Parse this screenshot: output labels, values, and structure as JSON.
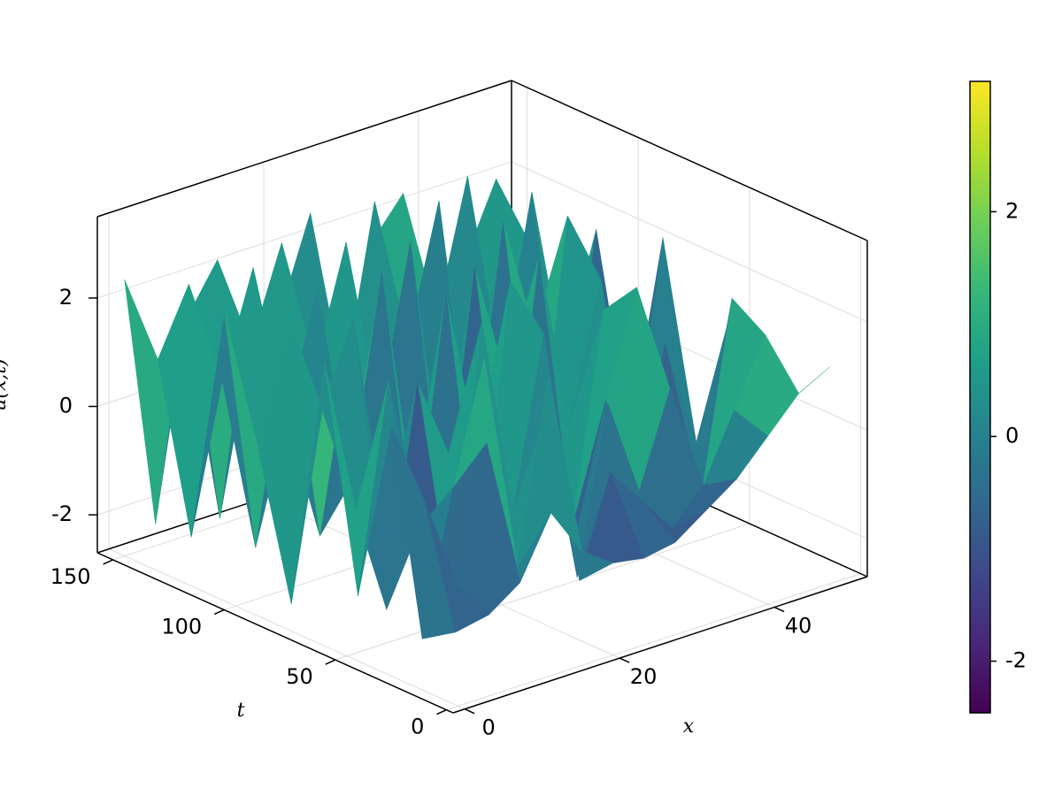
{
  "chart_data": {
    "type": "surface3d",
    "xlabel": "x",
    "ylabel": "t",
    "zlabel": "u(x,t)",
    "x": [
      0,
      4,
      8,
      12,
      16,
      20,
      24,
      28,
      32,
      36,
      40,
      44,
      48
    ],
    "t": [
      0,
      15,
      30,
      45,
      60,
      75,
      90,
      105,
      120,
      135,
      150
    ],
    "z": [
      [
        -0.5,
        -1.2,
        -0.8,
        0.3,
        -0.6,
        -1.0,
        -1.1,
        -1.0,
        -0.6,
        -0.2,
        0.4,
        1.0,
        1.3
      ],
      [
        0.8,
        -1.8,
        1.5,
        -1.0,
        2.4,
        -1.6,
        0.2,
        -0.5,
        -1.2,
        -0.6,
        0.6,
        1.8,
        0.5
      ],
      [
        1.9,
        -2.2,
        0.4,
        2.6,
        -1.7,
        1.2,
        -2.0,
        1.0,
        -0.8,
        0.9,
        -1.3,
        2.2,
        -0.4
      ],
      [
        -1.5,
        2.3,
        -0.6,
        -2.1,
        2.8,
        -0.9,
        2.2,
        -1.8,
        0.6,
        2.5,
        -0.2,
        -1.5,
        1.4
      ],
      [
        2.5,
        -0.4,
        -2.4,
        1.6,
        0.1,
        -2.3,
        2.9,
        0.3,
        -2.0,
        1.8,
        -1.8,
        0.8,
        -1.2
      ],
      [
        -2.2,
        1.2,
        2.7,
        -1.3,
        -1.9,
        2.6,
        -0.5,
        -2.2,
        2.7,
        -0.6,
        1.9,
        -1.9,
        2.3
      ],
      [
        0.4,
        2.6,
        -1.6,
        -0.8,
        2.9,
        -1.4,
        -2.3,
        2.4,
        0.2,
        -2.3,
        2.8,
        -0.5,
        -1.6
      ],
      [
        2.6,
        -1.9,
        0.3,
        2.5,
        -1.2,
        -0.2,
        2.8,
        -1.6,
        -1.9,
        2.6,
        0.4,
        -2.2,
        1.9
      ],
      [
        -1.8,
        0.9,
        2.8,
        -2.0,
        0.6,
        2.7,
        -1.5,
        0.5,
        2.9,
        -1.7,
        -0.6,
        2.5,
        -0.8
      ],
      [
        1.2,
        2.4,
        -2.1,
        0.9,
        2.6,
        -1.9,
        -0.4,
        2.8,
        -0.9,
        0.3,
        2.7,
        -1.8,
        1.1
      ],
      [
        2.4,
        -2.3,
        1.3,
        2.2,
        -1.4,
        0.8,
        2.5,
        -2.1,
        1.6,
        2.3,
        -1.2,
        0.7,
        2.0
      ]
    ],
    "xlim": [
      -1.5,
      52
    ],
    "ylim": [
      -3,
      157
    ],
    "zlim": [
      -2.7,
      3.5
    ],
    "xticks": [
      0,
      20,
      40
    ],
    "yticks": [
      0,
      50,
      100,
      150
    ],
    "zticks": [
      -2,
      0,
      2
    ],
    "colormap": "viridis",
    "clim": [
      -2.46,
      3.16
    ],
    "cticks": [
      -2,
      0,
      2
    ],
    "grid": true
  }
}
